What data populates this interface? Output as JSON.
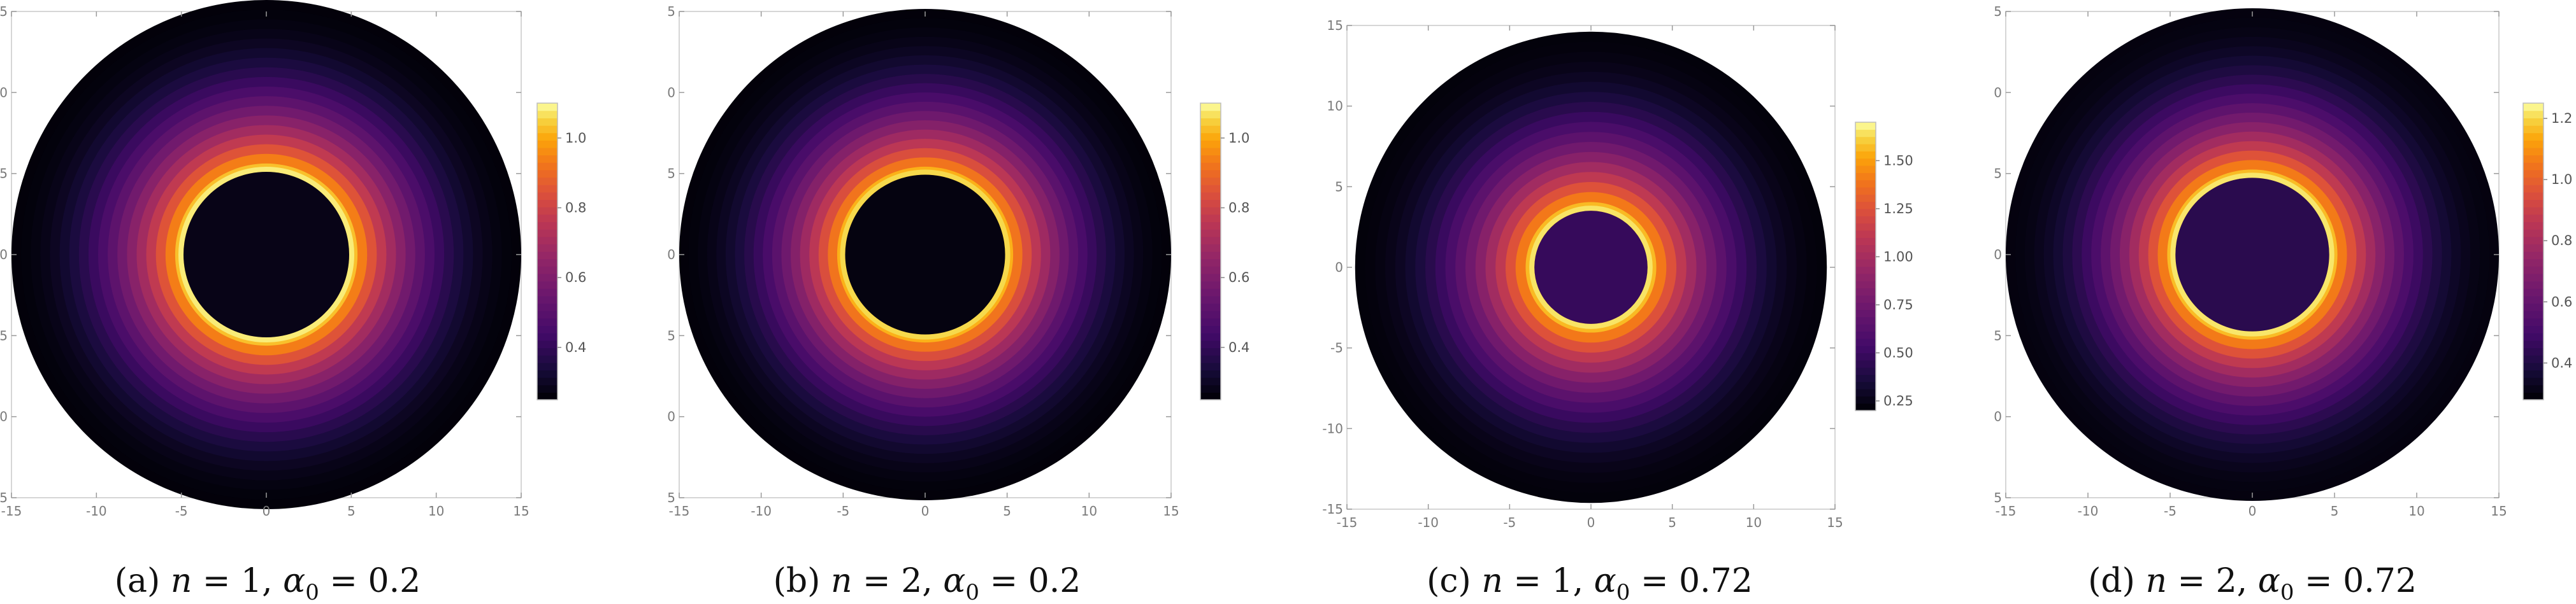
{
  "chart_data": [
    {
      "type": "heatmap",
      "caption": {
        "tag": "(a)",
        "n_label": "n",
        "n_value": "1",
        "alpha_label": "α",
        "alpha_sub": "0",
        "alpha_value": "0.2"
      },
      "xlim": [
        -15,
        15
      ],
      "ylim": [
        -15,
        15
      ],
      "x_ticks": [
        "-15",
        "-10",
        "-5",
        "0",
        "5",
        "10",
        "15"
      ],
      "y_ticks": [
        "5",
        "0",
        "5",
        "0",
        "5",
        "0",
        "5"
      ],
      "colorbar": {
        "range": [
          0.25,
          1.1
        ],
        "ticks": [
          "0.4",
          "0.6",
          "0.8",
          "1.0"
        ]
      },
      "inner_radius": 4.8,
      "outer_radius": 15,
      "inner_value": 0.28,
      "peak_value": 1.08,
      "edge_value": 0.26
    },
    {
      "type": "heatmap",
      "caption": {
        "tag": "(b)",
        "n_label": "n",
        "n_value": "2",
        "alpha_label": "α",
        "alpha_sub": "0",
        "alpha_value": "0.2"
      },
      "xlim": [
        -15,
        15
      ],
      "ylim": [
        -15,
        15
      ],
      "x_ticks": [
        "-15",
        "-10",
        "-5",
        "0",
        "5",
        "10",
        "15"
      ],
      "y_ticks": [
        "5",
        "0",
        "5",
        "0",
        "5",
        "0",
        "5"
      ],
      "colorbar": {
        "range": [
          0.25,
          1.1
        ],
        "ticks": [
          "0.4",
          "0.6",
          "0.8",
          "1.0"
        ]
      },
      "inner_radius": 4.8,
      "outer_radius": 15,
      "inner_value": 0.27,
      "peak_value": 1.06,
      "edge_value": 0.26
    },
    {
      "type": "heatmap",
      "caption": {
        "tag": "(c)",
        "n_label": "n",
        "n_value": "1",
        "alpha_label": "α",
        "alpha_sub": "0",
        "alpha_value": "0.72"
      },
      "xlim": [
        -15,
        15
      ],
      "ylim": [
        -15,
        15
      ],
      "x_ticks": [
        "-15",
        "-10",
        "-5",
        "0",
        "5",
        "10",
        "15"
      ],
      "y_ticks": [
        "15",
        "10",
        "5",
        "0",
        "-5",
        "-10",
        "-15"
      ],
      "colorbar": {
        "range": [
          0.2,
          1.7
        ],
        "ticks": [
          "0.25",
          "0.50",
          "0.75",
          "1.00",
          "1.25",
          "1.50"
        ]
      },
      "inner_radius": 3.4,
      "outer_radius": 14.5,
      "inner_value": 0.48,
      "peak_value": 1.65,
      "edge_value": 0.22
    },
    {
      "type": "heatmap",
      "caption": {
        "tag": "(d)",
        "n_label": "n",
        "n_value": "2",
        "alpha_label": "α",
        "alpha_sub": "0",
        "alpha_value": "0.72"
      },
      "xlim": [
        -15,
        15
      ],
      "ylim": [
        -15,
        15
      ],
      "x_ticks": [
        "-15",
        "-10",
        "-5",
        "0",
        "5",
        "10",
        "15"
      ],
      "y_ticks": [
        "5",
        "0",
        "5",
        "0",
        "5",
        "0",
        "5"
      ],
      "colorbar": {
        "range": [
          0.28,
          1.25
        ],
        "ticks": [
          "0.4",
          "0.6",
          "0.8",
          "1.0",
          "1.2"
        ]
      },
      "inner_radius": 4.6,
      "outer_radius": 15,
      "inner_value": 0.43,
      "peak_value": 1.22,
      "edge_value": 0.3
    }
  ]
}
